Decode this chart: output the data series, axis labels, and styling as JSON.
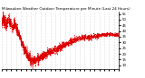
{
  "title": "Milwaukee Weather Outdoor Temperature per Minute (Last 24 Hours)",
  "line_color": "#dd0000",
  "background_color": "#ffffff",
  "grid_color": "#bbbbbb",
  "y_ticks": [
    10,
    15,
    20,
    25,
    30,
    35,
    40,
    45,
    50,
    55
  ],
  "ylim": [
    7,
    57
  ],
  "xlim": [
    0,
    1439
  ],
  "x_num_points": 1440,
  "profile_x": [
    0,
    20,
    40,
    60,
    90,
    110,
    140,
    160,
    190,
    220,
    260,
    310,
    370,
    420,
    460,
    500,
    560,
    620,
    700,
    800,
    900,
    1000,
    1100,
    1200,
    1300,
    1380,
    1439
  ],
  "profile_y": [
    46,
    52,
    48,
    45,
    50,
    46,
    44,
    47,
    42,
    36,
    28,
    20,
    14,
    15,
    16,
    18,
    20,
    22,
    25,
    29,
    32,
    34,
    35,
    36,
    37,
    37,
    36
  ],
  "noise_scale": 1.5,
  "noise_seed": 7,
  "linewidth": 0.5,
  "title_fontsize": 3.0,
  "tick_fontsize": 2.8,
  "num_x_ticks": 24,
  "dash_pattern": [
    2,
    2
  ]
}
